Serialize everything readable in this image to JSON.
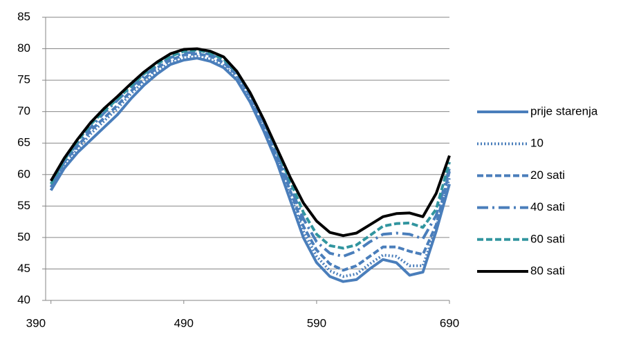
{
  "chart_data": {
    "type": "line",
    "x": [
      390,
      400,
      410,
      420,
      430,
      440,
      450,
      460,
      470,
      480,
      490,
      500,
      510,
      520,
      530,
      540,
      550,
      560,
      570,
      580,
      590,
      600,
      610,
      620,
      630,
      640,
      650,
      660,
      670,
      680,
      690
    ],
    "xlim": [
      386,
      690
    ],
    "xticks": [
      390,
      490,
      590,
      690
    ],
    "ylim": [
      40,
      85
    ],
    "yticks": [
      40,
      45,
      50,
      55,
      60,
      65,
      70,
      75,
      80,
      85
    ],
    "grid": true,
    "legend": "right",
    "series": [
      {
        "name": "prije starenja",
        "color": "#4a7ebb",
        "dash": "solid",
        "values": [
          57.5,
          61,
          63.5,
          65.5,
          67.5,
          69.5,
          72,
          74.2,
          76,
          77.5,
          78.2,
          78.5,
          78,
          77,
          75,
          71.5,
          67,
          62,
          56,
          50,
          46,
          43.8,
          43,
          43.3,
          45,
          46.5,
          46,
          44,
          44.5,
          51,
          58.5
        ]
      },
      {
        "name": "10",
        "color": "#4a7ebb",
        "dash": "dot",
        "values": [
          57.5,
          61.5,
          64,
          66.5,
          68.5,
          70.5,
          72.8,
          74.8,
          76.5,
          77.8,
          78.5,
          78.8,
          78.3,
          77.3,
          75.3,
          72,
          67.5,
          62.5,
          56.8,
          51,
          47,
          44.7,
          43.8,
          44.2,
          45.8,
          47.2,
          47,
          45.5,
          45.5,
          51.5,
          59.5
        ]
      },
      {
        "name": "20 sati",
        "color": "#4a7ebb",
        "dash": "dash",
        "values": [
          58,
          62,
          64.5,
          67,
          69,
          71,
          73.2,
          75.2,
          77,
          78.2,
          79,
          79.2,
          78.8,
          77.8,
          75.8,
          72.5,
          68,
          63,
          57.5,
          51.8,
          48,
          45.8,
          44.8,
          45.5,
          47,
          48.5,
          48.5,
          47.8,
          47.3,
          52,
          60.5
        ]
      },
      {
        "name": "40 sati",
        "color": "#4a7ebb",
        "dash": "longdashdot",
        "values": [
          58,
          62,
          65,
          67.5,
          69.8,
          71.8,
          73.8,
          75.7,
          77.3,
          78.6,
          79.3,
          79.5,
          79.1,
          78.1,
          76.1,
          72.8,
          68.5,
          63.5,
          58.2,
          53,
          49.3,
          47.5,
          47,
          47.8,
          49.3,
          50.5,
          50.7,
          50.5,
          49.8,
          53.5,
          61
        ]
      },
      {
        "name": "60 sati",
        "color": "#31959f",
        "dash": "dash",
        "values": [
          58.5,
          62.3,
          65.3,
          68,
          70.1,
          72,
          74,
          76,
          77.6,
          78.8,
          79.6,
          79.8,
          79.3,
          78.3,
          76.3,
          73,
          68.8,
          64,
          59,
          54,
          50.5,
          48.7,
          48.3,
          48.8,
          50.3,
          51.8,
          52.2,
          52.3,
          51.6,
          54.5,
          62
        ]
      },
      {
        "name": "80 sati",
        "color": "#000000",
        "dash": "solid",
        "values": [
          59,
          62.6,
          65.6,
          68.3,
          70.5,
          72.4,
          74.4,
          76.3,
          77.9,
          79.2,
          79.9,
          80,
          79.6,
          78.7,
          76.4,
          73,
          68.8,
          64.2,
          59.6,
          55.5,
          52.6,
          50.8,
          50.3,
          50.7,
          52,
          53.3,
          53.8,
          53.9,
          53.3,
          57,
          63
        ]
      }
    ]
  }
}
